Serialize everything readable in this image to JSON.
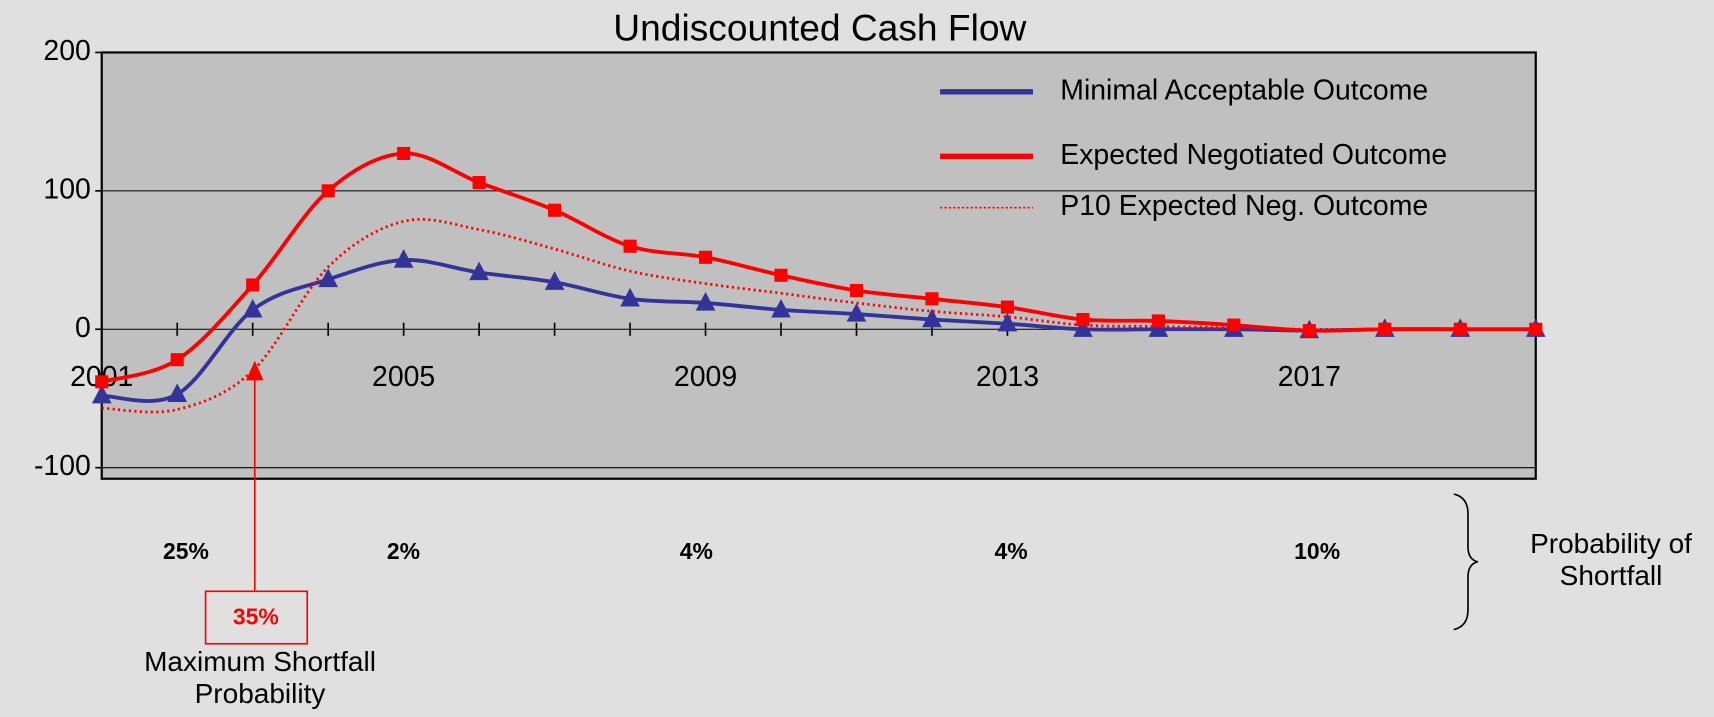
{
  "chart_data": {
    "type": "line",
    "title": "Undiscounted Cash Flow",
    "x": [
      2001,
      2002,
      2003,
      2004,
      2005,
      2006,
      2007,
      2008,
      2009,
      2010,
      2011,
      2012,
      2013,
      2014,
      2015,
      2016,
      2017,
      2018,
      2019,
      2020
    ],
    "xlim": [
      2001,
      2020
    ],
    "xticks": [
      2001,
      2005,
      2009,
      2013,
      2017
    ],
    "ylim": [
      -108,
      200
    ],
    "yticks": [
      200,
      100,
      0,
      -100
    ],
    "grid": true,
    "legend": "upper right",
    "series": [
      {
        "name": "Minimal Acceptable Outcome",
        "color": "#333399",
        "style": "solid",
        "marker": "triangle",
        "values": [
          -48,
          -47,
          14,
          36,
          50,
          41,
          34,
          22,
          19,
          14,
          11,
          7,
          4,
          0,
          0,
          0,
          -1,
          0,
          0,
          0
        ]
      },
      {
        "name": "Expected Negotiated Outcome",
        "color": "#ff0000",
        "style": "solid",
        "marker": "square",
        "values": [
          -38,
          -22,
          32,
          100,
          127,
          106,
          86,
          60,
          52,
          39,
          28,
          22,
          16,
          7,
          6,
          3,
          -1,
          0,
          0,
          0
        ]
      },
      {
        "name": "P10 Expected Neg. Outcome",
        "color": "#ff0000",
        "style": "dotted",
        "marker": "none",
        "values": [
          -57,
          -58,
          -30,
          45,
          78,
          72,
          58,
          42,
          33,
          26,
          19,
          13,
          9,
          3,
          2,
          1,
          0,
          0,
          0,
          0
        ]
      }
    ],
    "shortfall_probabilities": [
      "25%",
      "2%",
      "4%",
      "4%",
      "10%"
    ],
    "shortfall_label": "Probability of Shortfall",
    "max_shortfall_value": "35%",
    "max_shortfall_label": "Maximum Shortfall Probability"
  }
}
